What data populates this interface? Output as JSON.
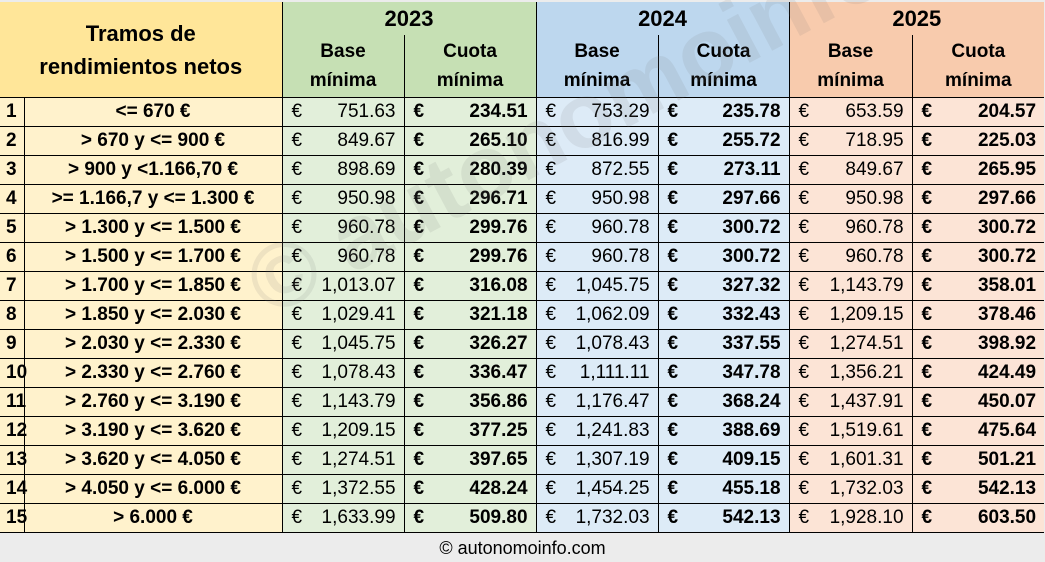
{
  "header": {
    "tramos_title_line1": "Tramos de",
    "tramos_title_line2": "rendimientos netos",
    "years": [
      {
        "label": "2023",
        "color": "#c6e0b4",
        "row_color": "#e2efda"
      },
      {
        "label": "2024",
        "color": "#bdd7ee",
        "row_color": "#ddebf7"
      },
      {
        "label": "2025",
        "color": "#f8cbad",
        "row_color": "#fce4d6"
      }
    ],
    "base_line1": "Base",
    "base_line2": "mínima",
    "cuota_line1": "Cuota",
    "cuota_line2": "mínima",
    "tramo_color": "#ffe699",
    "tramo_row_color": "#fff2cc"
  },
  "currency": "€",
  "rows": [
    {
      "n": "1",
      "tramo": "<= 670 €",
      "b2023": "751.63",
      "c2023": "234.51",
      "b2024": "753.29",
      "c2024": "235.78",
      "b2025": "653.59",
      "c2025": "204.57"
    },
    {
      "n": "2",
      "tramo": "> 670 y <= 900 €",
      "b2023": "849.67",
      "c2023": "265.10",
      "b2024": "816.99",
      "c2024": "255.72",
      "b2025": "718.95",
      "c2025": "225.03"
    },
    {
      "n": "3",
      "tramo": "> 900 y <1.166,70 €",
      "b2023": "898.69",
      "c2023": "280.39",
      "b2024": "872.55",
      "c2024": "273.11",
      "b2025": "849.67",
      "c2025": "265.95"
    },
    {
      "n": "4",
      "tramo": ">= 1.166,7 y <= 1.300 €",
      "b2023": "950.98",
      "c2023": "296.71",
      "b2024": "950.98",
      "c2024": "297.66",
      "b2025": "950.98",
      "c2025": "297.66"
    },
    {
      "n": "5",
      "tramo": "> 1.300 y <= 1.500 €",
      "b2023": "960.78",
      "c2023": "299.76",
      "b2024": "960.78",
      "c2024": "300.72",
      "b2025": "960.78",
      "c2025": "300.72"
    },
    {
      "n": "6",
      "tramo": "> 1.500 y <= 1.700 €",
      "b2023": "960.78",
      "c2023": "299.76",
      "b2024": "960.78",
      "c2024": "300.72",
      "b2025": "960.78",
      "c2025": "300.72"
    },
    {
      "n": "7",
      "tramo": "> 1.700 y <= 1.850 €",
      "b2023": "1,013.07",
      "c2023": "316.08",
      "b2024": "1,045.75",
      "c2024": "327.32",
      "b2025": "1,143.79",
      "c2025": "358.01"
    },
    {
      "n": "8",
      "tramo": "> 1.850 y <= 2.030 €",
      "b2023": "1,029.41",
      "c2023": "321.18",
      "b2024": "1,062.09",
      "c2024": "332.43",
      "b2025": "1,209.15",
      "c2025": "378.46"
    },
    {
      "n": "9",
      "tramo": "> 2.030 y <= 2.330 €",
      "b2023": "1,045.75",
      "c2023": "326.27",
      "b2024": "1,078.43",
      "c2024": "337.55",
      "b2025": "1,274.51",
      "c2025": "398.92"
    },
    {
      "n": "10",
      "tramo": "> 2.330 y <= 2.760 €",
      "b2023": "1,078.43",
      "c2023": "336.47",
      "b2024": "1,111.11",
      "c2024": "347.78",
      "b2025": "1,356.21",
      "c2025": "424.49"
    },
    {
      "n": "11",
      "tramo": "> 2.760 y <= 3.190 €",
      "b2023": "1,143.79",
      "c2023": "356.86",
      "b2024": "1,176.47",
      "c2024": "368.24",
      "b2025": "1,437.91",
      "c2025": "450.07"
    },
    {
      "n": "12",
      "tramo": "> 3.190 y <= 3.620 €",
      "b2023": "1,209.15",
      "c2023": "377.25",
      "b2024": "1,241.83",
      "c2024": "388.69",
      "b2025": "1,519.61",
      "c2025": "475.64"
    },
    {
      "n": "13",
      "tramo": "> 3.620 y <= 4.050 €",
      "b2023": "1,274.51",
      "c2023": "397.65",
      "b2024": "1,307.19",
      "c2024": "409.15",
      "b2025": "1,601.31",
      "c2025": "501.21"
    },
    {
      "n": "14",
      "tramo": "> 4.050 y <= 6.000 €",
      "b2023": "1,372.55",
      "c2023": "428.24",
      "b2024": "1,454.25",
      "c2024": "455.18",
      "b2025": "1,732.03",
      "c2025": "542.13"
    },
    {
      "n": "15",
      "tramo": "> 6.000 €",
      "b2023": "1,633.99",
      "c2023": "509.80",
      "b2024": "1,732.03",
      "c2024": "542.13",
      "b2025": "1,928.10",
      "c2025": "603.50"
    }
  ],
  "watermark": "© autonomoinfo.com",
  "footer": "© autonomoinfo.com"
}
